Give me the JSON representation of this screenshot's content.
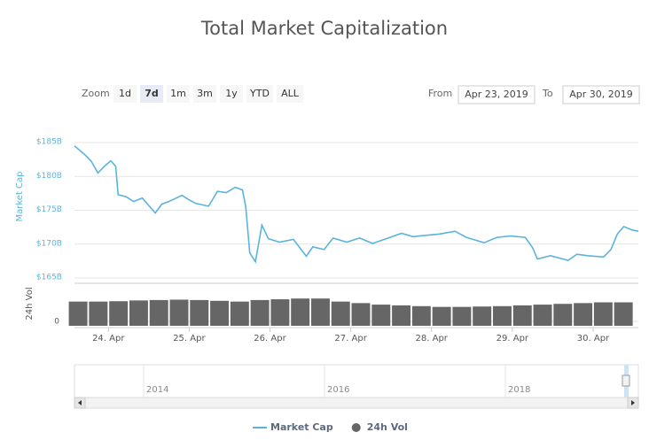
{
  "title": "Total Market Capitalization",
  "range_selector": {
    "zoom_label": "Zoom",
    "buttons": [
      "1d",
      "7d",
      "1m",
      "3m",
      "1y",
      "YTD",
      "ALL"
    ],
    "selected": 1,
    "from_label": "From",
    "from": "Apr 23, 2019",
    "to_label": "To",
    "to": "Apr 30, 2019"
  },
  "chart_data": {
    "type": "line",
    "y_label": "Market Cap",
    "y2_label": "24h Vol",
    "xlim": [
      23.58,
      30.56
    ],
    "xticks": [
      {
        "value": 24,
        "label": "24. Apr"
      },
      {
        "value": 25,
        "label": "25. Apr"
      },
      {
        "value": 26,
        "label": "26. Apr"
      },
      {
        "value": 27,
        "label": "27. Apr"
      },
      {
        "value": 28,
        "label": "28. Apr"
      },
      {
        "value": 29,
        "label": "29. Apr"
      },
      {
        "value": 30,
        "label": "30. Apr"
      }
    ],
    "ylim": [
      165,
      185
    ],
    "yticks": [
      {
        "value": 165,
        "label": "$165B"
      },
      {
        "value": 170,
        "label": "$170B"
      },
      {
        "value": 175,
        "label": "$175B"
      },
      {
        "value": 180,
        "label": "$180B"
      },
      {
        "value": 185,
        "label": "$185B"
      }
    ],
    "y2lim": [
      0,
      50
    ],
    "y2ticks": [
      0
    ],
    "grid": true,
    "legend": "bottom",
    "series": [
      {
        "name": "Market Cap",
        "color": "#5ab4dc",
        "kind": "line",
        "x": [
          23.58,
          23.7,
          23.79,
          23.87,
          23.96,
          24.03,
          24.09,
          24.12,
          24.22,
          24.31,
          24.42,
          24.58,
          24.66,
          24.75,
          24.91,
          24.99,
          25.08,
          25.24,
          25.35,
          25.46,
          25.57,
          25.66,
          25.7,
          25.75,
          25.82,
          25.9,
          25.98,
          26.12,
          26.29,
          26.45,
          26.53,
          26.67,
          26.78,
          26.95,
          27.11,
          27.27,
          27.44,
          27.63,
          27.77,
          27.93,
          28.1,
          28.29,
          28.43,
          28.65,
          28.81,
          28.98,
          29.16,
          29.25,
          29.31,
          29.47,
          29.69,
          29.8,
          29.93,
          30.13,
          30.22,
          30.3,
          30.38,
          30.48,
          30.56
        ],
        "values": [
          184.5,
          183.3,
          182.2,
          180.5,
          181.6,
          182.3,
          181.5,
          177.3,
          177,
          176.3,
          176.8,
          174.6,
          175.9,
          176.3,
          177.2,
          176.6,
          176,
          175.6,
          177.8,
          177.6,
          178.4,
          178,
          175.5,
          168.7,
          167.4,
          172.8,
          170.8,
          170.3,
          170.7,
          168.2,
          169.6,
          169.2,
          170.9,
          170.3,
          170.9,
          170.1,
          170.8,
          171.6,
          171.1,
          171.3,
          171.5,
          171.9,
          171,
          170.2,
          171,
          171.2,
          171,
          169.5,
          167.8,
          168.3,
          167.6,
          168.5,
          168.3,
          168.1,
          169.2,
          171.5,
          172.6,
          172.1,
          171.9
        ]
      },
      {
        "name": "24h Vol",
        "color": "#666666",
        "kind": "bar",
        "axis": "y2",
        "x": [
          23.625,
          23.875,
          24.125,
          24.375,
          24.625,
          24.875,
          25.125,
          25.375,
          25.625,
          25.875,
          26.125,
          26.375,
          26.625,
          26.875,
          27.125,
          27.375,
          27.625,
          27.875,
          28.125,
          28.375,
          28.625,
          28.875,
          29.125,
          29.375,
          29.625,
          29.875,
          30.125,
          30.375
        ],
        "values": [
          26,
          26,
          26.5,
          27.5,
          28,
          28.5,
          28,
          27,
          26,
          28,
          29,
          30,
          30,
          26,
          24,
          22,
          21,
          20,
          19,
          19,
          19.5,
          20,
          21,
          22,
          23,
          24,
          25,
          25
        ]
      }
    ],
    "navigator": {
      "labels": [
        "2014",
        "2016",
        "2018"
      ]
    }
  }
}
